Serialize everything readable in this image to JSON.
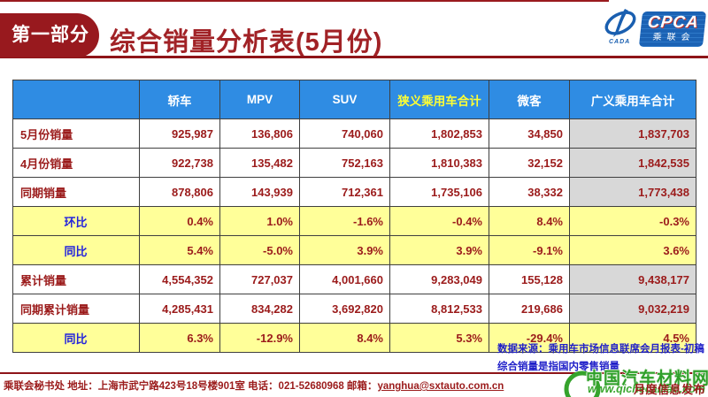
{
  "header": {
    "badge": "第一部分",
    "title": "综合销量分析表(5月份)",
    "logo": {
      "cpca": "CPCA",
      "cpca_cn": "乘联会",
      "cada": "CADA"
    }
  },
  "table": {
    "columns": [
      "",
      "轿车",
      "MPV",
      "SUV",
      "狭义乘用车合计",
      "微客",
      "广义乘用车合计"
    ],
    "highlight_column": 4,
    "rows": [
      {
        "label": "5月份销量",
        "type": "data",
        "values": [
          "925,987",
          "136,806",
          "740,060",
          "1,802,853",
          "34,850",
          "1,837,703"
        ]
      },
      {
        "label": "4月份销量",
        "type": "data",
        "values": [
          "922,738",
          "135,482",
          "752,163",
          "1,810,383",
          "32,152",
          "1,842,535"
        ]
      },
      {
        "label": "同期销量",
        "type": "data",
        "values": [
          "878,806",
          "143,939",
          "712,361",
          "1,735,106",
          "38,332",
          "1,773,438"
        ]
      },
      {
        "label": "环比",
        "type": "pct",
        "values": [
          "0.4%",
          "1.0%",
          "-1.6%",
          "-0.4%",
          "8.4%",
          "-0.3%"
        ]
      },
      {
        "label": "同比",
        "type": "pct",
        "values": [
          "5.4%",
          "-5.0%",
          "3.9%",
          "3.9%",
          "-9.1%",
          "3.6%"
        ]
      },
      {
        "label": "累计销量",
        "type": "data",
        "values": [
          "4,554,352",
          "727,037",
          "4,001,660",
          "9,283,049",
          "155,128",
          "9,438,177"
        ]
      },
      {
        "label": "同期累计销量",
        "type": "data",
        "values": [
          "4,285,431",
          "834,282",
          "3,692,820",
          "8,812,533",
          "219,686",
          "9,032,219"
        ]
      },
      {
        "label": "同比",
        "type": "pct",
        "values": [
          "6.3%",
          "-12.9%",
          "8.4%",
          "5.3%",
          "-29.4%",
          "4.5%"
        ]
      }
    ]
  },
  "notes": {
    "line1": "数据来源：乘用车市场信息联席会月报表-初稿",
    "line2": "综合销量是指国内零售销量"
  },
  "footer": {
    "contact_prefix": "乘联会秘书处  地址：上海市武宁路423号18号楼901室 电话：021-52680968  邮箱：",
    "email": "yanghua@sxtauto.com.cn",
    "release_label": "月度信息发布"
  },
  "watermark": {
    "site_name": "中国汽车材料网",
    "site_url": "www.qichecailiao.com"
  },
  "colors": {
    "header_blue": "#2f8ce3",
    "highlight_yellow_text": "#ffff33",
    "row_yellow": "#ffff99",
    "total_gray": "#d8d8d8",
    "dark_red": "#9b1b1b",
    "badge_red": "#98191e",
    "label_blue": "#2323dc",
    "note_blue": "#1f1fc8",
    "watermark_green": "#2fa02a",
    "logo_blue": "#1b62b4"
  }
}
